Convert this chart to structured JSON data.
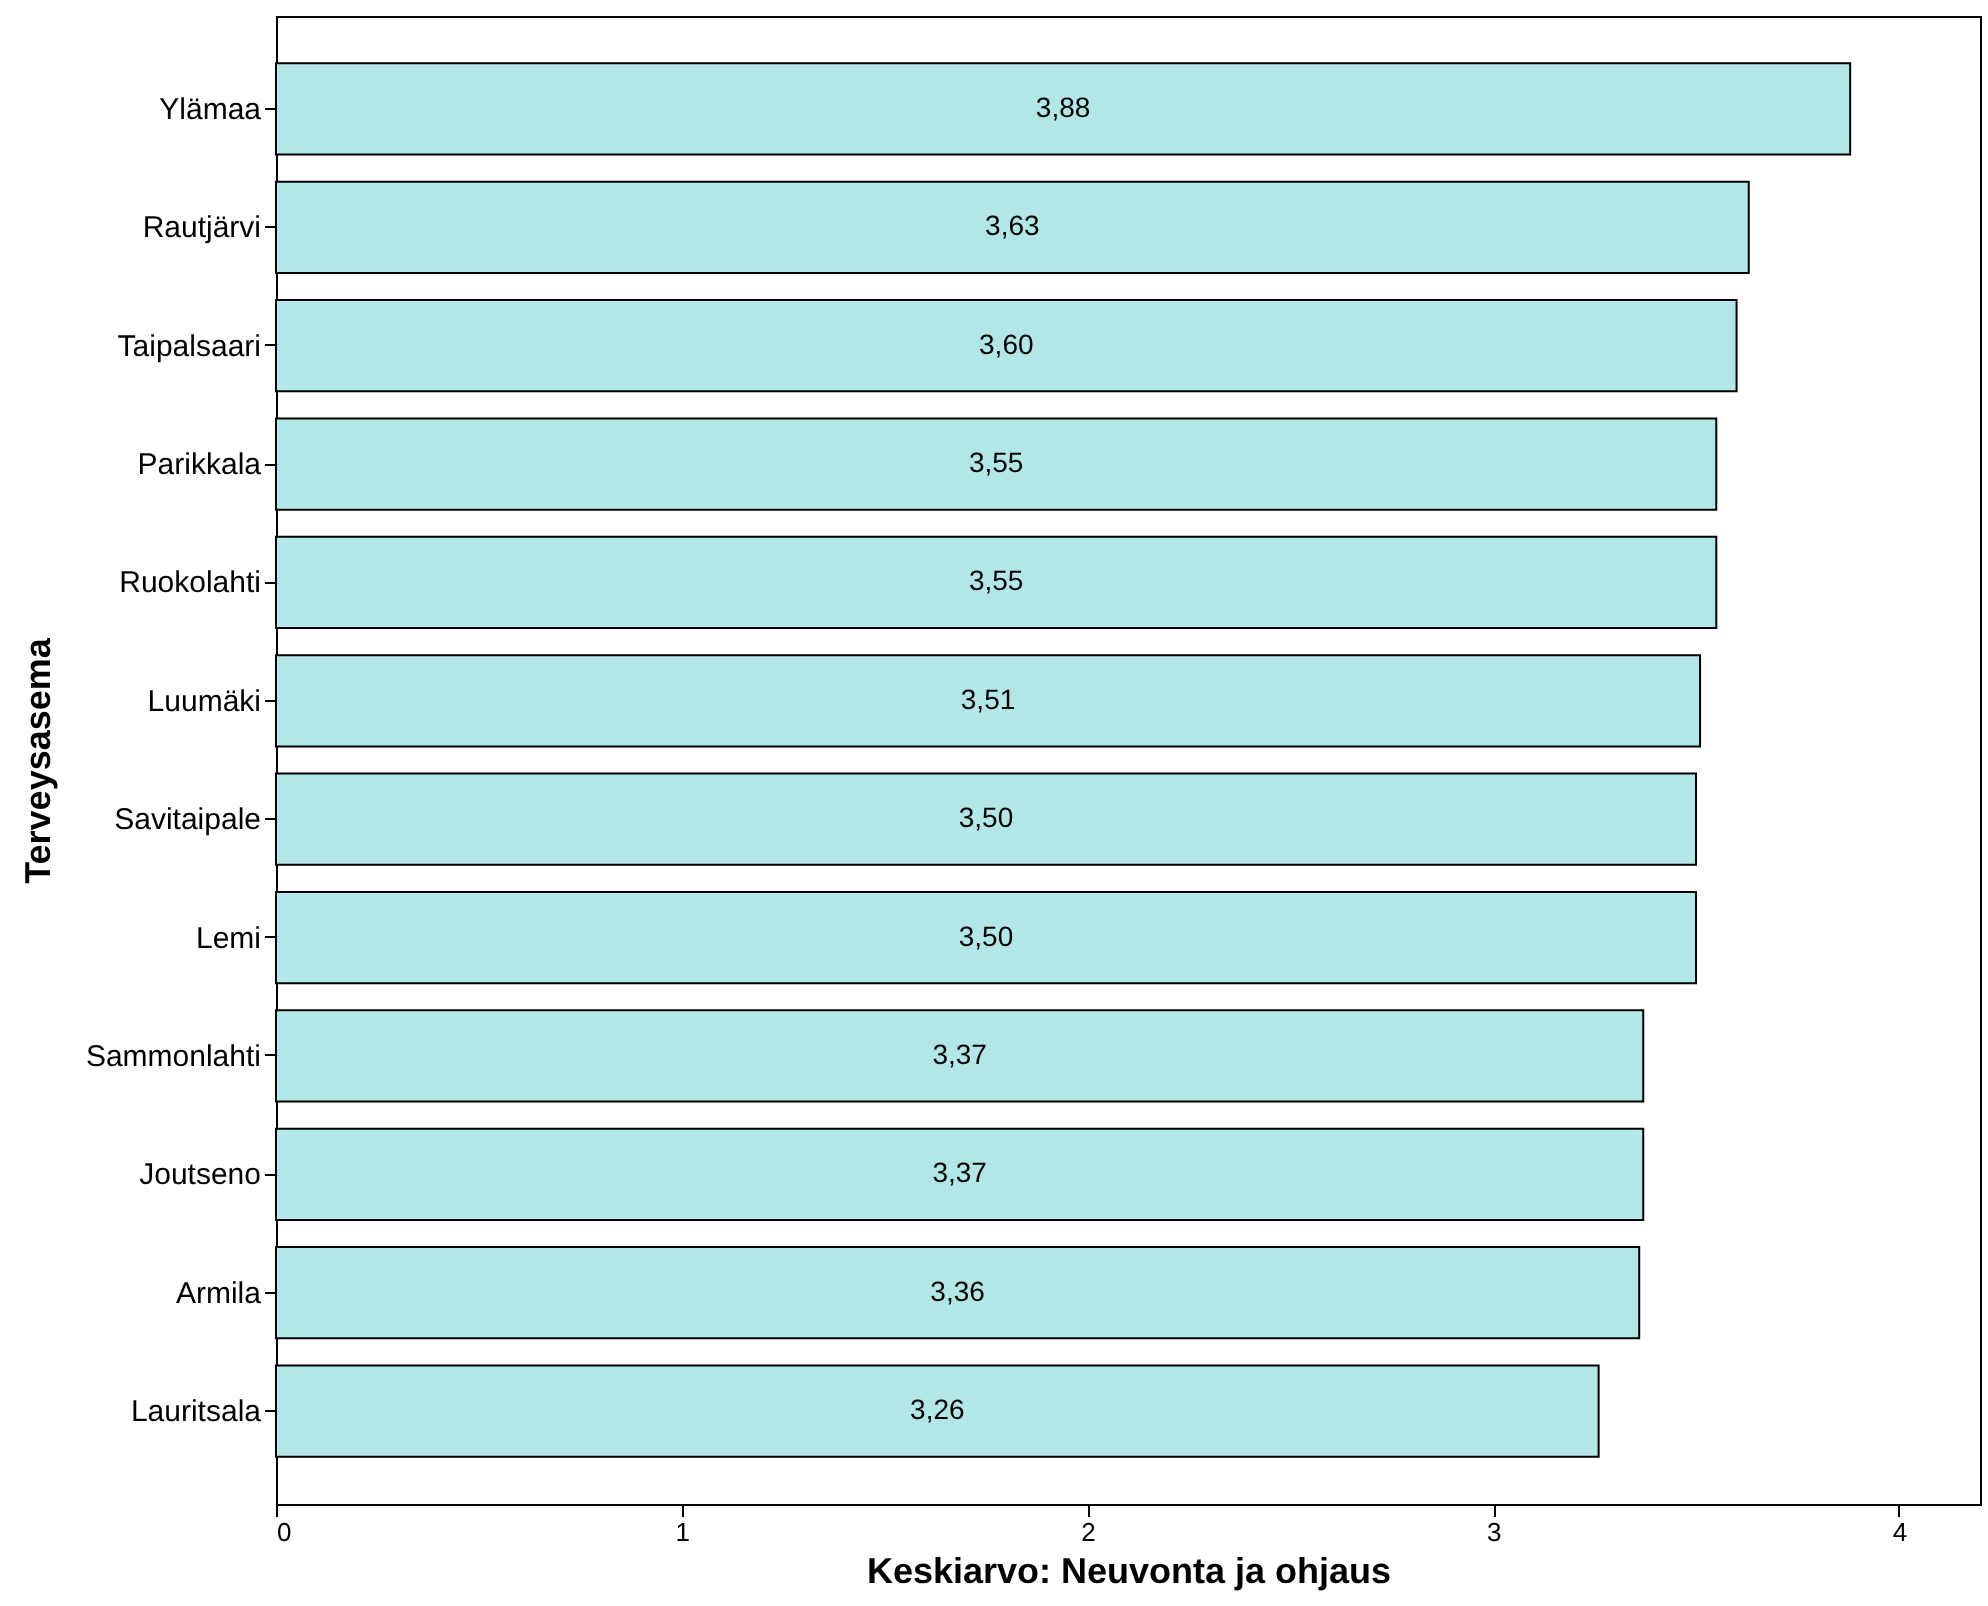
{
  "chart_data": {
    "type": "bar",
    "orientation": "horizontal",
    "xlabel": "Keskiarvo: Neuvonta ja ohjaus",
    "ylabel": "Terveysasema",
    "categories": [
      "Ylämaa",
      "Rautjärvi",
      "Taipalsaari",
      "Parikkala",
      "Ruokolahti",
      "Luumäki",
      "Savitaipale",
      "Lemi",
      "Sammonlahti",
      "Joutseno",
      "Armila",
      "Lauritsala"
    ],
    "values": [
      3.88,
      3.63,
      3.6,
      3.55,
      3.55,
      3.51,
      3.5,
      3.5,
      3.37,
      3.37,
      3.36,
      3.26
    ],
    "value_labels": [
      "3,88",
      "3,63",
      "3,60",
      "3,55",
      "3,55",
      "3,51",
      "3,50",
      "3,50",
      "3,37",
      "3,37",
      "3,36",
      "3,26"
    ],
    "color": "#b3e6e6",
    "xlim": [
      0,
      4.2
    ],
    "xticks": [
      0,
      1,
      2,
      3,
      4
    ],
    "grid": false
  }
}
